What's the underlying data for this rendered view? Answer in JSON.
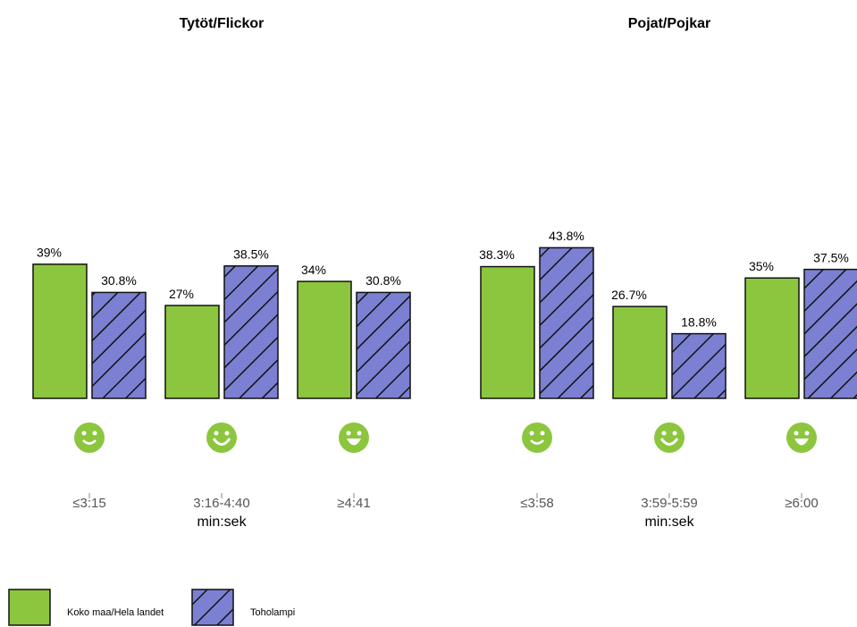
{
  "chart_data": [
    {
      "type": "bar",
      "title": "Tytöt/Flickor",
      "xlabel": "min:sek",
      "categories": [
        "≤3:15",
        "3:16-4:40",
        "≥4:41"
      ],
      "ylim": [
        0,
        100
      ],
      "series": [
        {
          "name": "Koko maa/Hela landet",
          "color": "#8cc63e",
          "values": [
            39,
            27,
            34
          ],
          "value_labels": [
            "39%",
            "27%",
            "34%"
          ]
        },
        {
          "name": "Toholampi",
          "color": "#7b80d2",
          "hatch": true,
          "values": [
            30.8,
            38.5,
            30.8
          ],
          "value_labels": [
            "30.8%",
            "38.5%",
            "30.8%"
          ]
        }
      ]
    },
    {
      "type": "bar",
      "title": "Pojat/Pojkar",
      "xlabel": "min:sek",
      "categories": [
        "≤3:58",
        "3:59-5:59",
        "≥6:00"
      ],
      "ylim": [
        0,
        100
      ],
      "series": [
        {
          "name": "Koko maa/Hela landet",
          "color": "#8cc63e",
          "values": [
            38.3,
            26.7,
            35
          ],
          "value_labels": [
            "38.3%",
            "26.7%",
            "35%"
          ]
        },
        {
          "name": "Toholampi",
          "color": "#7b80d2",
          "hatch": true,
          "values": [
            43.8,
            18.8,
            37.5
          ],
          "value_labels": [
            "43.8%",
            "18.8%",
            "37.5%"
          ]
        }
      ]
    }
  ]
}
